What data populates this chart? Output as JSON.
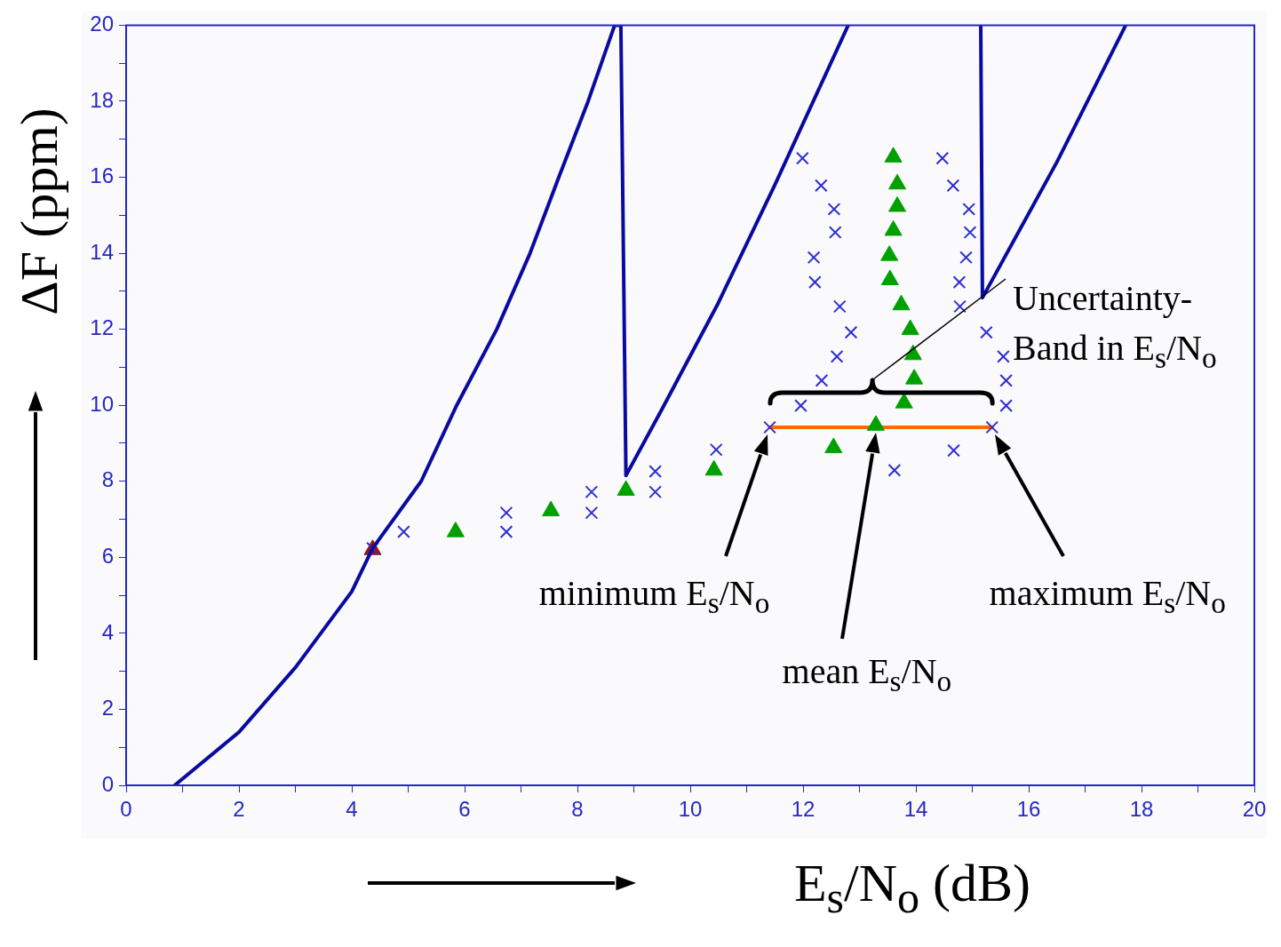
{
  "chart_data": {
    "type": "scatter",
    "xlabel": "E$_{s}$/N$_{o}$ (dB)",
    "ylabel": "ΔF (ppm)",
    "xlim": [
      0,
      20
    ],
    "ylim": [
      0,
      20
    ],
    "xticks": [
      0,
      {
        "value": 1,
        "label": null
      },
      2,
      {
        "value": 3,
        "label": null
      },
      4,
      {
        "value": 5,
        "label": null
      },
      6,
      {
        "value": 7,
        "label": null
      },
      8,
      {
        "value": 9,
        "label": null
      },
      10,
      {
        "value": 11,
        "label": null
      },
      12,
      {
        "value": 13,
        "label": null
      },
      14,
      {
        "value": 15,
        "label": null
      },
      16,
      {
        "value": 17,
        "label": null
      },
      18,
      {
        "value": 19,
        "label": null
      },
      20
    ],
    "yticks": [
      0,
      {
        "value": 1,
        "label": null
      },
      2,
      {
        "value": 3,
        "label": null
      },
      4,
      {
        "value": 5,
        "label": null
      },
      6,
      {
        "value": 7,
        "label": null
      },
      8,
      {
        "value": 9,
        "label": null
      },
      10,
      {
        "value": 11,
        "label": null
      },
      12,
      {
        "value": 13,
        "label": null
      },
      14,
      {
        "value": 15,
        "label": null
      },
      16,
      {
        "value": 17,
        "label": null
      },
      18,
      {
        "value": 19,
        "label": null
      },
      20
    ],
    "grid": false,
    "legend": false,
    "series": [
      {
        "type": "line",
        "color": "#0a0aa0",
        "marker": "none",
        "line_style": "solid",
        "x": [
          0.86,
          2,
          3,
          4,
          4.37,
          5.23,
          5.86,
          6.57,
          7.16,
          7.67,
          8.19,
          8.66,
          8.77,
          8.86,
          9.5,
          10.5,
          11.5,
          12.8,
          14,
          15.15,
          15.18,
          16.5,
          17.72
        ],
        "values": [
          0,
          1.4,
          3.1,
          5.1,
          6.24,
          8,
          10,
          12,
          14,
          16,
          18,
          20,
          20,
          8.15,
          9.9,
          12.7,
          15.8,
          20,
          null,
          20,
          12.83,
          16.4,
          20
        ]
      },
      {
        "color": "#2e2ed0",
        "marker": "cross",
        "x": [
          4.37,
          4.92,
          6.74,
          6.74,
          8.25,
          8.25,
          9.38,
          9.38,
          10.46,
          11.41,
          11.96,
          12.33,
          12.6,
          12.85,
          12.65,
          12.21,
          12.19,
          12.57,
          12.55,
          12.32,
          11.99,
          13.62,
          14.67,
          15.35,
          15.6,
          15.6,
          15.55,
          15.25,
          14.78,
          14.77,
          14.89,
          14.96,
          14.94,
          14.66,
          14.47
        ],
        "values": [
          6.24,
          6.67,
          6.67,
          7.17,
          7.17,
          7.72,
          7.72,
          8.26,
          8.83,
          9.42,
          9.99,
          10.65,
          11.28,
          11.92,
          12.6,
          13.24,
          13.89,
          14.55,
          15.16,
          15.78,
          16.5,
          8.29,
          8.81,
          9.42,
          9.99,
          10.65,
          11.28,
          11.92,
          12.6,
          13.24,
          13.89,
          14.55,
          15.16,
          15.78,
          16.5
        ]
      },
      {
        "color": "#00a000",
        "marker": "triangle",
        "x": [
          5.84,
          7.53,
          8.86,
          10.42,
          12.54,
          13.29,
          13.79,
          13.97,
          13.95,
          13.9,
          13.74,
          13.54,
          13.53,
          13.6,
          13.67,
          13.67,
          13.6
        ],
        "values": [
          6.67,
          7.22,
          7.76,
          8.29,
          8.88,
          9.47,
          10.06,
          10.69,
          11.33,
          11.99,
          12.64,
          13.3,
          13.94,
          14.6,
          15.23,
          15.82,
          16.53
        ]
      },
      {
        "color": "#a01010",
        "marker": "triangle",
        "x": [
          4.37
        ],
        "values": [
          6.2
        ]
      },
      {
        "type": "line",
        "color": "#ff6a00",
        "marker": "none",
        "line_style": "solid",
        "x": [
          11.41,
          15.35
        ],
        "values": [
          9.42,
          9.42
        ]
      }
    ],
    "annotations": [
      "Uncertainty-Band in E$_{s}$/N$_{o}$",
      "minimum E$_{s}$/N$_{o}$",
      "mean E$_{s}$/N$_{o}$",
      "maximum E$_{s}$/N$_{o}$"
    ]
  }
}
